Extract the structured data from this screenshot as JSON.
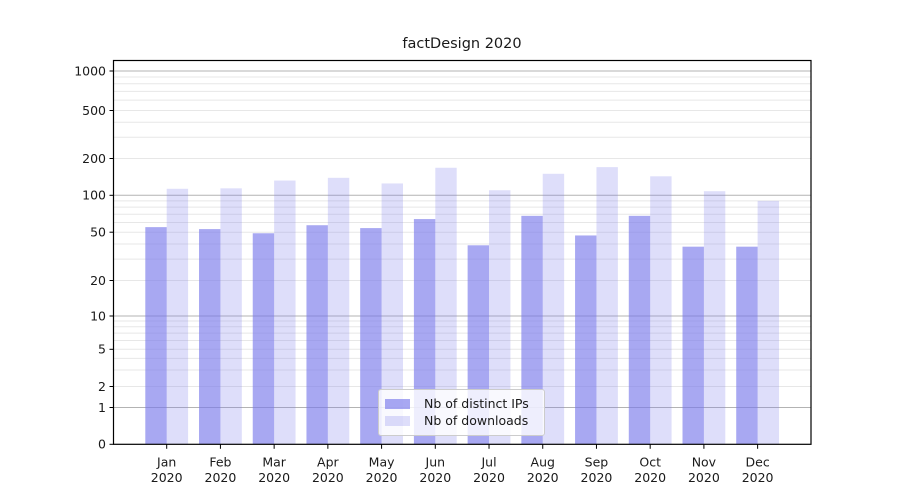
{
  "title": "factDesign 2020",
  "chart_data": {
    "type": "bar",
    "title": "factDesign 2020",
    "categories": [
      "Jan 2020",
      "Feb 2020",
      "Mar 2020",
      "Apr 2020",
      "May 2020",
      "Jun 2020",
      "Jul 2020",
      "Aug 2020",
      "Sep 2020",
      "Oct 2020",
      "Nov 2020",
      "Dec 2020"
    ],
    "series": [
      {
        "name": "Nb of distinct IPs",
        "color": "#7a7aeb",
        "alpha": 0.65,
        "values": [
          55,
          53,
          49,
          57,
          54,
          64,
          39,
          68,
          47,
          68,
          38,
          38
        ]
      },
      {
        "name": "Nb of downloads",
        "color": "#7a7aeb",
        "alpha": 0.25,
        "values": [
          113,
          114,
          132,
          139,
          125,
          168,
          110,
          150,
          170,
          143,
          108,
          90
        ]
      }
    ],
    "xlabel": "",
    "ylabel": "",
    "yscale": "symlog (log above 1, linear 0-1, compressed 1-10)",
    "yticks": [
      1000,
      500,
      200,
      100,
      50,
      20,
      10,
      5,
      2,
      1,
      0
    ],
    "ylim": [
      0,
      1200
    ],
    "grid": "horizontal, major decades darker, minors light",
    "legend_position": "inside lower-center"
  },
  "colors": {
    "bar_base": "#7a7aeb",
    "grid_major": "#b3b3b3",
    "grid_minor": "#e7e7e7",
    "spine": "#000000",
    "text": "#1a1a1a"
  }
}
